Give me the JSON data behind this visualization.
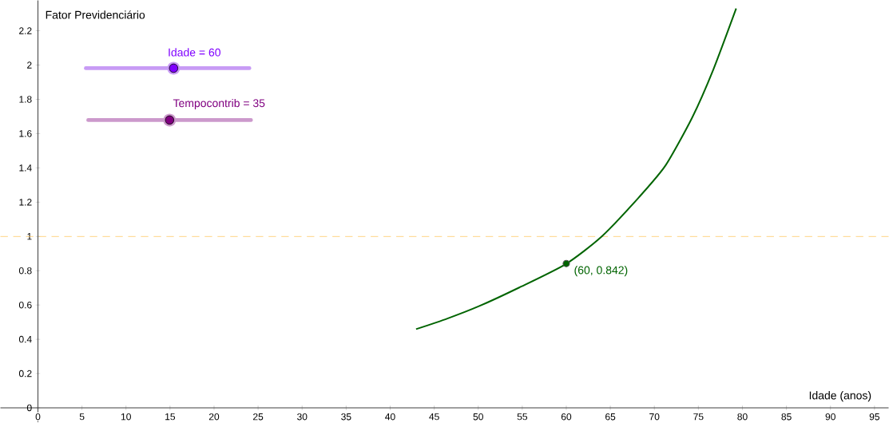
{
  "chart_data": {
    "type": "line",
    "xlabel": "Idade (anos)",
    "ylabel": "Fator Previdenciário",
    "xlim": [
      -4.26,
      96.6
    ],
    "ylim": [
      -0.084,
      2.377
    ],
    "xticks": [
      0,
      5,
      10,
      15,
      20,
      25,
      30,
      35,
      40,
      45,
      50,
      55,
      60,
      65,
      70,
      75,
      80,
      85,
      90,
      95
    ],
    "yticks": [
      0,
      0.2,
      0.4,
      0.6,
      0.8,
      1,
      1.2,
      1.4,
      1.6,
      1.8,
      2,
      2.2
    ],
    "series": [
      {
        "color": "#006400",
        "marker": "none",
        "x": [
          42.94,
          46.5,
          50.13,
          54.66,
          59.95,
          64.03,
          68.26,
          71.28,
          74.3,
          76.7,
          79.29
        ],
        "values": [
          0.459,
          0.521,
          0.594,
          0.702,
          0.839,
          1.0,
          1.229,
          1.415,
          1.694,
          1.974,
          2.33
        ]
      },
      {
        "type": "scatter",
        "color": "#006400",
        "marker": "circle",
        "x": [
          60
        ],
        "values": [
          0.842
        ]
      }
    ],
    "ref_lines": [
      {
        "axis": "y",
        "value": 1,
        "color": "#ffc14f",
        "line_style": "dashed"
      }
    ],
    "annotations": [
      {
        "text": "(60, 0.842)",
        "x": 60,
        "y": 0.842
      },
      "Idade = 60",
      "Tempocontrib = 35"
    ]
  }
}
